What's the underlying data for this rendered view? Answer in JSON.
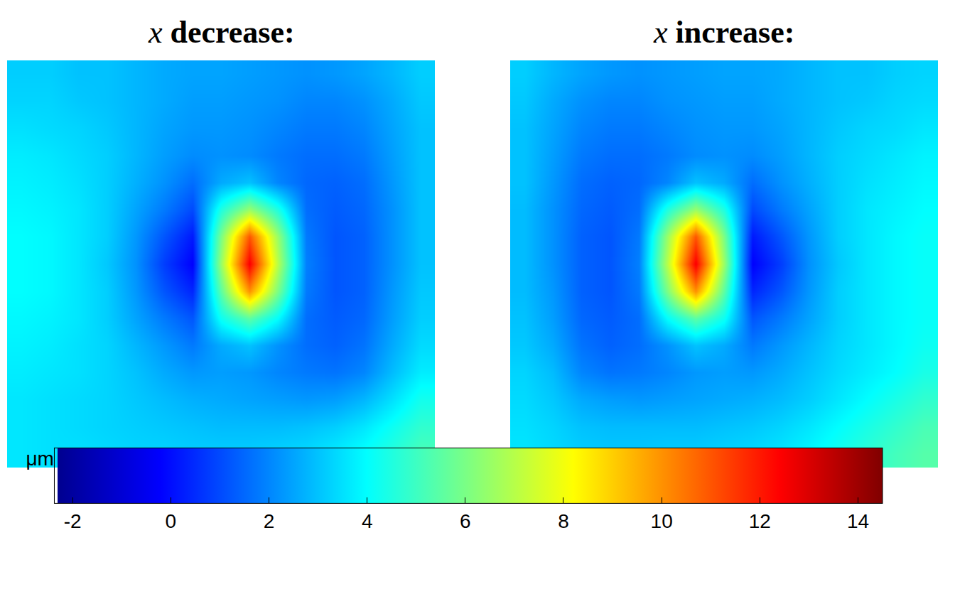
{
  "chart_data": {
    "type": "heatmap",
    "tick_labels": false,
    "colorbar": {
      "range": [
        -2.3,
        14.5
      ],
      "ticks": [
        -2,
        0,
        2,
        4,
        6,
        8,
        10,
        12,
        14
      ],
      "label": "μm"
    },
    "panels": [
      {
        "title": "x decrease:",
        "cells": [
          [
            3.2,
            3.2,
            3.0,
            3.0,
            2.8,
            2.6,
            2.5,
            2.5,
            2.4,
            2.3,
            2.2,
            2.3,
            2.5,
            2.8,
            3.2
          ],
          [
            3.3,
            3.3,
            3.1,
            3.0,
            2.8,
            2.6,
            2.4,
            2.4,
            2.3,
            2.2,
            2.0,
            2.0,
            2.2,
            2.6,
            3.1
          ],
          [
            3.5,
            3.4,
            3.3,
            3.1,
            2.8,
            2.5,
            2.3,
            2.3,
            2.2,
            2.0,
            1.8,
            1.8,
            2.0,
            2.5,
            3.0
          ],
          [
            3.7,
            3.6,
            3.4,
            3.2,
            2.8,
            2.4,
            2.1,
            2.2,
            2.1,
            1.8,
            1.6,
            1.6,
            1.8,
            2.4,
            3.0
          ],
          [
            3.8,
            3.7,
            3.5,
            3.2,
            2.7,
            2.2,
            1.6,
            2.6,
            3.0,
            2.0,
            1.5,
            1.4,
            1.6,
            2.3,
            3.0
          ],
          [
            3.9,
            3.8,
            3.6,
            3.2,
            2.5,
            1.8,
            1.0,
            4.5,
            6.5,
            4.5,
            1.6,
            1.3,
            1.5,
            2.2,
            3.0
          ],
          [
            4.0,
            3.9,
            3.6,
            3.2,
            2.3,
            1.2,
            0.2,
            6.0,
            11.0,
            6.5,
            1.8,
            1.2,
            1.4,
            2.2,
            3.0
          ],
          [
            4.0,
            3.9,
            3.6,
            3.1,
            2.2,
            0.8,
            -0.2,
            6.5,
            12.5,
            7.0,
            1.9,
            1.2,
            1.4,
            2.2,
            3.0
          ],
          [
            4.0,
            3.9,
            3.6,
            3.2,
            2.3,
            1.2,
            0.4,
            5.5,
            10.0,
            6.0,
            1.8,
            1.2,
            1.4,
            2.3,
            3.1
          ],
          [
            3.9,
            3.8,
            3.6,
            3.2,
            2.5,
            1.8,
            1.2,
            4.2,
            5.5,
            4.0,
            1.6,
            1.3,
            1.5,
            2.4,
            3.2
          ],
          [
            3.8,
            3.7,
            3.5,
            3.3,
            2.8,
            2.3,
            1.8,
            2.6,
            3.0,
            2.2,
            1.6,
            1.4,
            1.7,
            2.6,
            3.4
          ],
          [
            3.7,
            3.6,
            3.5,
            3.3,
            3.0,
            2.6,
            2.3,
            2.4,
            2.3,
            2.0,
            1.8,
            1.7,
            2.0,
            2.9,
            3.7
          ],
          [
            3.6,
            3.5,
            3.4,
            3.3,
            3.1,
            2.9,
            2.7,
            2.6,
            2.5,
            2.4,
            2.3,
            2.4,
            2.8,
            3.5,
            4.3
          ],
          [
            3.6,
            3.5,
            3.4,
            3.3,
            3.2,
            3.1,
            3.0,
            2.9,
            2.9,
            2.9,
            3.0,
            3.2,
            3.6,
            4.2,
            4.8
          ],
          [
            3.6,
            3.5,
            3.5,
            3.4,
            3.3,
            3.3,
            3.2,
            3.2,
            3.2,
            3.3,
            3.4,
            3.7,
            4.1,
            4.6,
            5.2
          ]
        ]
      },
      {
        "title": "x increase:",
        "cells": [
          [
            3.2,
            2.8,
            2.5,
            2.3,
            2.2,
            2.3,
            2.4,
            2.5,
            2.5,
            2.6,
            2.8,
            3.0,
            3.0,
            3.2,
            3.3
          ],
          [
            3.1,
            2.6,
            2.2,
            2.0,
            2.0,
            2.2,
            2.3,
            2.4,
            2.4,
            2.6,
            2.8,
            3.0,
            3.1,
            3.3,
            3.4
          ],
          [
            3.0,
            2.5,
            2.0,
            1.8,
            1.8,
            2.0,
            2.2,
            2.3,
            2.3,
            2.5,
            2.8,
            3.1,
            3.3,
            3.4,
            3.6
          ],
          [
            3.0,
            2.4,
            1.8,
            1.6,
            1.6,
            1.8,
            2.1,
            2.2,
            2.1,
            2.4,
            2.8,
            3.2,
            3.4,
            3.6,
            3.8
          ],
          [
            3.0,
            2.3,
            1.6,
            1.4,
            1.5,
            2.0,
            3.0,
            2.6,
            1.6,
            2.2,
            2.7,
            3.2,
            3.5,
            3.7,
            3.9
          ],
          [
            2.9,
            2.2,
            1.5,
            1.3,
            1.6,
            4.5,
            6.5,
            4.5,
            1.0,
            1.8,
            2.5,
            3.2,
            3.6,
            3.8,
            4.0
          ],
          [
            2.9,
            2.2,
            1.4,
            1.2,
            1.8,
            6.5,
            11.0,
            6.0,
            0.2,
            1.2,
            2.3,
            3.2,
            3.6,
            3.9,
            4.1
          ],
          [
            2.9,
            2.2,
            1.4,
            1.2,
            1.9,
            7.0,
            12.5,
            6.5,
            -0.2,
            0.8,
            2.2,
            3.1,
            3.6,
            3.9,
            4.1
          ],
          [
            2.9,
            2.3,
            1.4,
            1.2,
            1.8,
            6.0,
            10.0,
            5.5,
            0.4,
            1.2,
            2.3,
            3.2,
            3.6,
            3.9,
            4.1
          ],
          [
            3.0,
            2.4,
            1.5,
            1.3,
            1.6,
            4.0,
            5.5,
            4.2,
            1.2,
            1.8,
            2.5,
            3.2,
            3.6,
            3.9,
            4.1
          ],
          [
            3.1,
            2.6,
            1.7,
            1.4,
            1.6,
            2.2,
            3.0,
            2.6,
            1.8,
            2.3,
            2.8,
            3.3,
            3.6,
            3.9,
            4.2
          ],
          [
            3.3,
            2.9,
            2.0,
            1.7,
            1.8,
            2.0,
            2.3,
            2.4,
            2.3,
            2.6,
            3.0,
            3.4,
            3.7,
            4.0,
            4.4
          ],
          [
            3.4,
            3.1,
            2.6,
            2.4,
            2.3,
            2.4,
            2.5,
            2.6,
            2.7,
            2.9,
            3.2,
            3.6,
            4.0,
            4.4,
            4.8
          ],
          [
            3.5,
            3.3,
            3.0,
            2.9,
            2.9,
            2.9,
            2.9,
            3.0,
            3.1,
            3.3,
            3.6,
            4.0,
            4.4,
            4.8,
            5.2
          ],
          [
            3.6,
            3.4,
            3.2,
            3.1,
            3.1,
            3.2,
            3.2,
            3.3,
            3.4,
            3.6,
            3.9,
            4.3,
            4.7,
            5.1,
            5.4
          ]
        ]
      }
    ]
  }
}
